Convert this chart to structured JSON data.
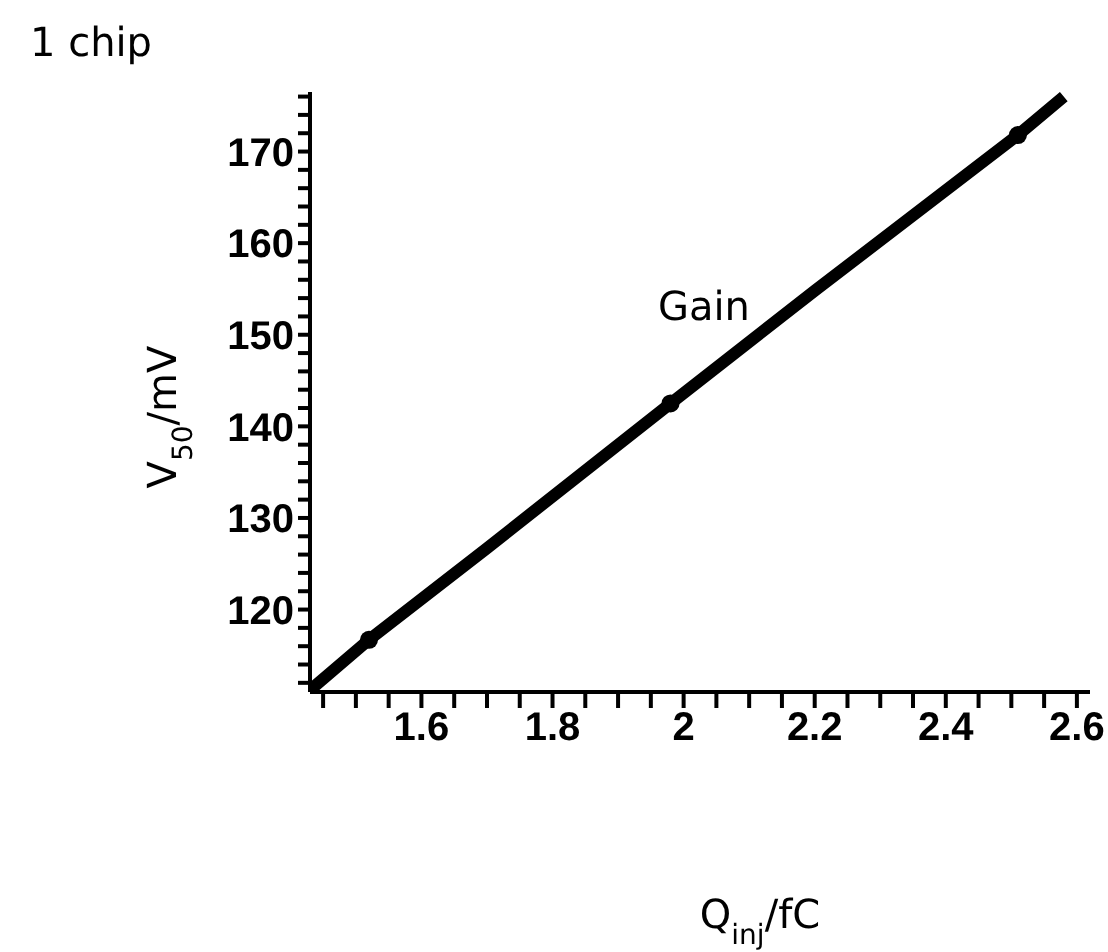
{
  "chart_data": {
    "type": "line",
    "title": "1 chip",
    "xlabel": "Q$_{inj}$/fC",
    "ylabel": "V$_{50}$/mV",
    "annotations": [
      "Gain"
    ],
    "series": [
      {
        "color": "#000000",
        "marker": "none",
        "x": [
          1.43,
          1.52,
          1.7,
          1.98,
          2.2,
          2.51,
          2.58
        ],
        "values": [
          111.2,
          116.7,
          126.7,
          142.5,
          154.8,
          171.8,
          176
        ]
      },
      {
        "type": "scatter",
        "color": "#000000",
        "marker": "circle",
        "x": [
          1.52,
          1.98,
          2.51
        ],
        "values": [
          116.7,
          142.5,
          171.8
        ]
      }
    ],
    "xlim": [
      1.43,
      2.62
    ],
    "ylim": [
      111,
      176.5
    ],
    "xticks": [
      1.6,
      1.8,
      2,
      2.2,
      2.4,
      2.6,
      {
        "value": 1.45,
        "label": null
      },
      {
        "value": 1.5,
        "label": null
      },
      {
        "value": 1.55,
        "label": null
      },
      {
        "value": 1.65,
        "label": null
      },
      {
        "value": 1.7,
        "label": null
      },
      {
        "value": 1.75,
        "label": null
      },
      {
        "value": 1.85,
        "label": null
      },
      {
        "value": 1.9,
        "label": null
      },
      {
        "value": 1.95,
        "label": null
      },
      {
        "value": 2.05,
        "label": null
      },
      {
        "value": 2.1,
        "label": null
      },
      {
        "value": 2.15,
        "label": null
      },
      {
        "value": 2.25,
        "label": null
      },
      {
        "value": 2.3,
        "label": null
      },
      {
        "value": 2.35,
        "label": null
      },
      {
        "value": 2.45,
        "label": null
      },
      {
        "value": 2.5,
        "label": null
      },
      {
        "value": 2.55,
        "label": null
      }
    ],
    "yticks": [
      120,
      130,
      140,
      150,
      160,
      170,
      {
        "value": 112,
        "label": null
      },
      {
        "value": 114,
        "label": null
      },
      {
        "value": 116,
        "label": null
      },
      {
        "value": 118,
        "label": null
      },
      {
        "value": 122,
        "label": null
      },
      {
        "value": 124,
        "label": null
      },
      {
        "value": 126,
        "label": null
      },
      {
        "value": 128,
        "label": null
      },
      {
        "value": 132,
        "label": null
      },
      {
        "value": 134,
        "label": null
      },
      {
        "value": 136,
        "label": null
      },
      {
        "value": 138,
        "label": null
      },
      {
        "value": 142,
        "label": null
      },
      {
        "value": 144,
        "label": null
      },
      {
        "value": 146,
        "label": null
      },
      {
        "value": 148,
        "label": null
      },
      {
        "value": 152,
        "label": null
      },
      {
        "value": 154,
        "label": null
      },
      {
        "value": 156,
        "label": null
      },
      {
        "value": 158,
        "label": null
      },
      {
        "value": 162,
        "label": null
      },
      {
        "value": 164,
        "label": null
      },
      {
        "value": 166,
        "label": null
      },
      {
        "value": 168,
        "label": null
      },
      {
        "value": 172,
        "label": null
      },
      {
        "value": 174,
        "label": null
      },
      {
        "value": 176,
        "label": null
      }
    ],
    "grid": false
  }
}
